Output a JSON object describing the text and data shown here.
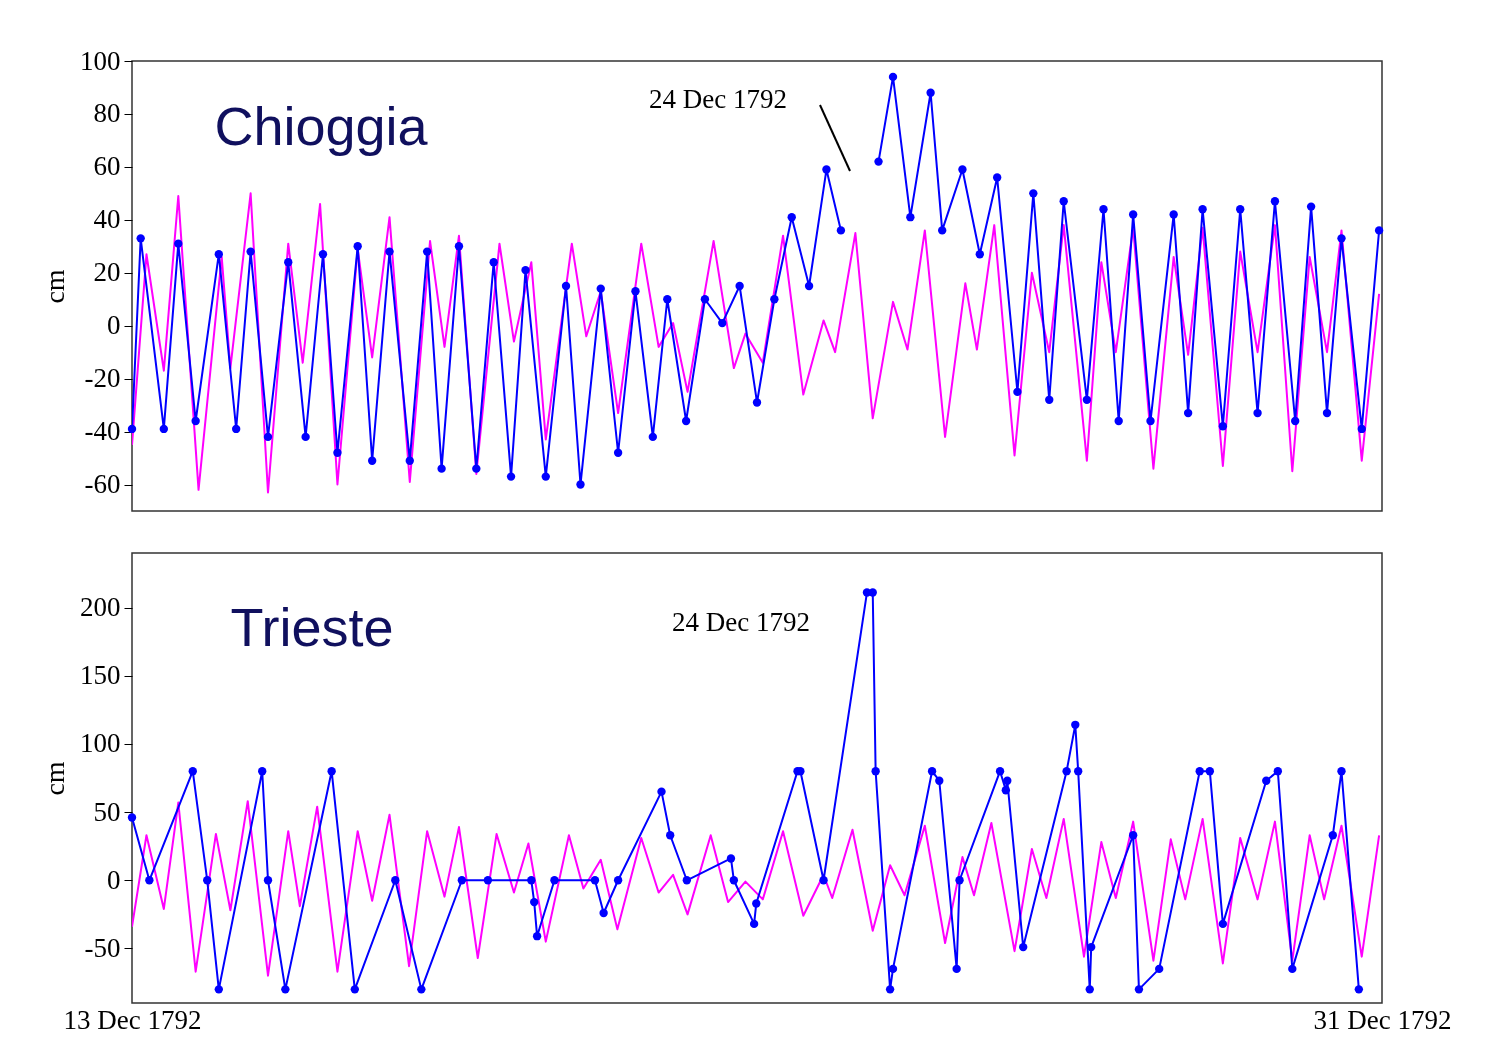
{
  "chart_data": [
    {
      "type": "line",
      "title": "Chioggia",
      "ylabel": "cm",
      "xlim": [
        "1792-12-13",
        "1792-12-31"
      ],
      "ylim": [
        -70,
        100
      ],
      "yticks": [
        -60,
        -40,
        -20,
        0,
        20,
        40,
        60,
        80,
        100
      ],
      "tick_labels": "y",
      "annotations": [
        "24 Dec 1792"
      ],
      "series": [
        {
          "color": "#ff00ff",
          "marker": "none",
          "x": [
            "1792-12-13T00:00",
            "1792-12-13T05:00",
            "1792-12-13T11:00",
            "1792-12-13T16:00",
            "1792-12-13T23:00",
            "1792-12-14T07:00",
            "1792-12-14T10:00",
            "1792-12-14T17:00",
            "1792-12-14T23:00",
            "1792-12-15T06:00",
            "1792-12-15T11:00",
            "1792-12-15T17:00",
            "1792-12-15T23:00",
            "1792-12-16T06:00",
            "1792-12-16T11:00",
            "1792-12-16T17:00",
            "1792-12-17T00:00",
            "1792-12-17T07:00",
            "1792-12-17T12:00",
            "1792-12-17T17:00",
            "1792-12-17T23:00",
            "1792-12-18T07:00",
            "1792-12-18T12:00",
            "1792-12-18T18:00",
            "1792-12-18T23:00",
            "1792-12-19T08:00",
            "1792-12-19T13:00",
            "1792-12-19T18:00",
            "1792-12-20T00:00",
            "1792-12-20T08:00",
            "1792-12-20T14:00",
            "1792-12-20T19:00",
            "1792-12-21T00:00",
            "1792-12-21T09:00",
            "1792-12-21T16:00",
            "1792-12-21T20:00",
            "1792-12-22T02:00",
            "1792-12-22T09:00",
            "1792-12-22T16:00",
            "1792-12-22T23:00",
            "1792-12-23T03:00",
            "1792-12-23T10:00",
            "1792-12-23T16:00",
            "1792-12-23T23:00",
            "1792-12-24T04:00",
            "1792-12-24T10:00",
            "1792-12-24T17:00",
            "1792-12-25T00:00",
            "1792-12-25T04:00",
            "1792-12-25T10:00",
            "1792-12-25T17:00",
            "1792-12-25T23:00",
            "1792-12-26T05:00",
            "1792-12-26T10:00",
            "1792-12-26T18:00",
            "1792-12-26T23:00",
            "1792-12-27T04:00",
            "1792-12-27T10:00",
            "1792-12-27T17:00",
            "1792-12-28T00:00",
            "1792-12-28T05:00",
            "1792-12-28T10:00",
            "1792-12-28T17:00",
            "1792-12-28T23:00",
            "1792-12-29T05:00",
            "1792-12-29T11:00",
            "1792-12-29T17:00",
            "1792-12-29T23:00",
            "1792-12-30T05:00",
            "1792-12-30T10:00",
            "1792-12-30T17:00",
            "1792-12-30T23:00"
          ],
          "values": [
            -45,
            27,
            -17,
            49,
            -62,
            26,
            -16,
            50,
            -63,
            31,
            -14,
            46,
            -60,
            29,
            -12,
            41,
            -59,
            32,
            -8,
            34,
            -56,
            31,
            -6,
            24,
            -43,
            31,
            -4,
            13,
            -33,
            31,
            -8,
            1,
            -25,
            32,
            -16,
            -3,
            -14,
            34,
            -26,
            2,
            -10,
            35,
            -35,
            9,
            -9,
            36,
            -42,
            16,
            -9,
            38,
            -49,
            20,
            -10,
            38,
            -51,
            24,
            -10,
            37,
            -54,
            26,
            -11,
            37,
            -53,
            28,
            -10,
            38,
            -55,
            26,
            -10,
            36,
            -51,
            12
          ]
        },
        {
          "color": "#0000ff",
          "marker": "circle",
          "x": [
            "1792-12-13T00:00",
            "1792-12-13T03:00",
            "1792-12-13T11:00",
            "1792-12-13T16:00",
            "1792-12-13T22:00",
            "1792-12-14T06:00",
            "1792-12-14T12:00",
            "1792-12-14T17:00",
            "1792-12-14T23:00",
            "1792-12-15T06:00",
            "1792-12-15T12:00",
            "1792-12-15T18:00",
            "1792-12-15T23:00",
            "1792-12-16T06:00",
            "1792-12-16T11:00",
            "1792-12-16T17:00",
            "1792-12-17T00:00",
            "1792-12-17T06:00",
            "1792-12-17T11:00",
            "1792-12-17T17:00",
            "1792-12-17T23:00",
            "1792-12-18T05:00",
            "1792-12-18T11:00",
            "1792-12-18T16:00",
            "1792-12-18T23:00",
            "1792-12-19T06:00",
            "1792-12-19T11:00",
            "1792-12-19T18:00",
            "1792-12-20T00:00",
            "1792-12-20T06:00",
            "1792-12-20T12:00",
            "1792-12-20T17:00",
            "1792-12-20T23:30",
            "1792-12-21T06:00",
            "1792-12-21T12:00",
            "1792-12-21T18:00",
            "1792-12-22T00:00",
            "1792-12-22T06:00",
            "1792-12-22T12:00",
            "1792-12-22T18:00",
            "1792-12-23T00:00",
            "1792-12-23T05:00",
            "1792-12-23T12:00",
            "1792-12-23T18:00",
            "1792-12-23T23:00",
            "1792-12-24T05:00",
            "1792-12-24T12:00",
            "1792-12-24T16:00",
            "1792-12-24T23:00",
            "1792-12-25T05:00",
            "1792-12-25T11:00",
            "1792-12-25T18:00",
            "1792-12-25T23:30",
            "1792-12-26T05:00",
            "1792-12-26T10:00",
            "1792-12-26T18:00",
            "1792-12-26T23:45",
            "1792-12-27T05:00",
            "1792-12-27T10:00",
            "1792-12-27T16:00",
            "1792-12-28T00:00",
            "1792-12-28T05:00",
            "1792-12-28T10:00",
            "1792-12-28T17:00",
            "1792-12-28T23:00",
            "1792-12-29T05:00",
            "1792-12-29T11:00",
            "1792-12-29T18:00",
            "1792-12-29T23:30",
            "1792-12-30T05:00",
            "1792-12-30T10:00",
            "1792-12-30T17:00",
            "1792-12-30T23:00"
          ],
          "values": [
            -39,
            33,
            -39,
            31,
            -36,
            27,
            -39,
            28,
            -42,
            24,
            -42,
            27,
            -48,
            30,
            -51,
            28,
            -51,
            28,
            -54,
            30,
            -54,
            24,
            -57,
            21,
            -57,
            15,
            -60,
            14,
            -48,
            13,
            -42,
            10,
            -36,
            10,
            1,
            15,
            -29,
            10,
            41,
            15,
            59,
            36,
            null,
            62,
            94,
            41,
            88,
            36,
            59,
            27,
            56,
            -25,
            50,
            -28,
            47,
            -28,
            44,
            -36,
            42,
            -36,
            42,
            -33,
            44,
            -38,
            44,
            -33,
            47,
            -36,
            45,
            -33,
            33,
            -39,
            36
          ]
        }
      ]
    },
    {
      "type": "line",
      "title": "Trieste",
      "ylabel": "cm",
      "xlim": [
        "1792-12-13",
        "1792-12-31"
      ],
      "xticks": [
        {
          "value": "1792-12-13",
          "label": "13 Dec 1792"
        },
        {
          "value": "1792-12-31",
          "label": "31 Dec 1792"
        }
      ],
      "ylim": [
        -90,
        240
      ],
      "yticks": [
        -50,
        0,
        50,
        100,
        150,
        200
      ],
      "annotations": [
        "24 Dec 1792"
      ],
      "series": [
        {
          "color": "#ff00ff",
          "marker": "none",
          "x": [
            "1792-12-13T00:00",
            "1792-12-13T05:00",
            "1792-12-13T11:00",
            "1792-12-13T16:00",
            "1792-12-13T22:00",
            "1792-12-14T05:00",
            "1792-12-14T10:00",
            "1792-12-14T16:00",
            "1792-12-14T23:00",
            "1792-12-15T06:00",
            "1792-12-15T10:00",
            "1792-12-15T16:00",
            "1792-12-15T23:00",
            "1792-12-16T06:00",
            "1792-12-16T11:00",
            "1792-12-16T17:00",
            "1792-12-16T23:45",
            "1792-12-17T06:00",
            "1792-12-17T12:00",
            "1792-12-17T17:00",
            "1792-12-17T23:30",
            "1792-12-18T06:00",
            "1792-12-18T12:00",
            "1792-12-18T17:00",
            "1792-12-18T23:00",
            "1792-12-19T07:00",
            "1792-12-19T12:00",
            "1792-12-19T18:00",
            "1792-12-19T23:45",
            "1792-12-20T08:00",
            "1792-12-20T14:00",
            "1792-12-20T19:00",
            "1792-12-21T00:00",
            "1792-12-21T08:00",
            "1792-12-21T14:00",
            "1792-12-21T20:00",
            "1792-12-22T02:00",
            "1792-12-22T09:00",
            "1792-12-22T16:00",
            "1792-12-22T23:00",
            "1792-12-23T02:00",
            "1792-12-23T09:00",
            "1792-12-23T16:00",
            "1792-12-23T22:00",
            "1792-12-24T03:00",
            "1792-12-24T10:00",
            "1792-12-24T17:00",
            "1792-12-24T23:00",
            "1792-12-25T03:00",
            "1792-12-25T09:00",
            "1792-12-25T17:00",
            "1792-12-25T23:00",
            "1792-12-26T04:00",
            "1792-12-26T10:00",
            "1792-12-26T17:00",
            "1792-12-26T23:00",
            "1792-12-27T04:00",
            "1792-12-27T10:00",
            "1792-12-27T17:00",
            "1792-12-27T23:00",
            "1792-12-28T04:00",
            "1792-12-28T10:00",
            "1792-12-28T17:00",
            "1792-12-28T23:00",
            "1792-12-29T05:00",
            "1792-12-29T11:00",
            "1792-12-29T17:00",
            "1792-12-29T23:00",
            "1792-12-30T04:00",
            "1792-12-30T10:00",
            "1792-12-30T17:00",
            "1792-12-30T23:00"
          ],
          "values": [
            -34,
            33,
            -21,
            57,
            -67,
            34,
            -22,
            58,
            -70,
            36,
            -19,
            54,
            -67,
            36,
            -15,
            48,
            -63,
            36,
            -12,
            39,
            -57,
            34,
            -9,
            27,
            -45,
            33,
            -6,
            15,
            -36,
            31,
            -9,
            4,
            -25,
            33,
            -16,
            -1,
            -14,
            36,
            -26,
            4,
            -13,
            37,
            -37,
            11,
            -11,
            40,
            -46,
            17,
            -11,
            42,
            -52,
            23,
            -13,
            45,
            -56,
            28,
            -13,
            43,
            -59,
            30,
            -14,
            45,
            -61,
            31,
            -14,
            43,
            -59,
            33,
            -14,
            40,
            -56,
            33
          ]
        },
        {
          "color": "#0000ff",
          "marker": "circle",
          "x": [
            "1792-12-13T00:00",
            "1792-12-13T06:00",
            "1792-12-13T21:00",
            "1792-12-14T02:00",
            "1792-12-14T06:00",
            "1792-12-14T21:00",
            "1792-12-14T23:00",
            "1792-12-15T05:00",
            "1792-12-15T21:00",
            "1792-12-16T05:00",
            "1792-12-16T19:00",
            "1792-12-17T04:00",
            "1792-12-17T18:00",
            "1792-12-18T03:00",
            "1792-12-18T18:00",
            "1792-12-18T19:00",
            "1792-12-18T20:00",
            "1792-12-19T02:00",
            "1792-12-19T16:00",
            "1792-12-19T19:00",
            "1792-12-20T00:00",
            "1792-12-20T15:00",
            "1792-12-20T18:00",
            "1792-12-20T23:45",
            "1792-12-21T15:00",
            "1792-12-21T16:00",
            "1792-12-21T23:00",
            "1792-12-21T23:45",
            "1792-12-22T14:00",
            "1792-12-22T15:00",
            "1792-12-22T23:00",
            "1792-12-23T14:00",
            "1792-12-23T16:00",
            "1792-12-23T17:00",
            "1792-12-23T22:00",
            "1792-12-23T23:00",
            "1792-12-24T12:30",
            "1792-12-24T15:00",
            "1792-12-24T21:00",
            "1792-12-24T22:00",
            "1792-12-25T12:00",
            "1792-12-25T14:00",
            "1792-12-25T14:30",
            "1792-12-25T20:00",
            "1792-12-26T11:00",
            "1792-12-26T14:00",
            "1792-12-26T15:00",
            "1792-12-26T19:00",
            "1792-12-26T19:30",
            "1792-12-27T10:00",
            "1792-12-27T12:00",
            "1792-12-27T19:00",
            "1792-12-28T09:00",
            "1792-12-28T12:30",
            "1792-12-28T17:00",
            "1792-12-29T08:00",
            "1792-12-29T12:00",
            "1792-12-29T17:00",
            "1792-12-30T07:00",
            "1792-12-30T10:00",
            "1792-12-30T16:00"
          ],
          "values": [
            46,
            0,
            80,
            0,
            -80,
            80,
            0,
            -80,
            80,
            -80,
            0,
            -80,
            0,
            0,
            0,
            -16,
            -41,
            0,
            0,
            -24,
            0,
            65,
            33,
            0,
            16,
            0,
            -32,
            -17,
            80,
            80,
            0,
            211,
            211,
            80,
            -80,
            -65,
            80,
            73,
            -65,
            0,
            80,
            66,
            73,
            -49,
            80,
            114,
            80,
            -80,
            -49,
            33,
            -80,
            -65,
            80,
            80,
            -32,
            73,
            80,
            -65,
            33,
            80,
            -80
          ]
        }
      ]
    }
  ]
}
